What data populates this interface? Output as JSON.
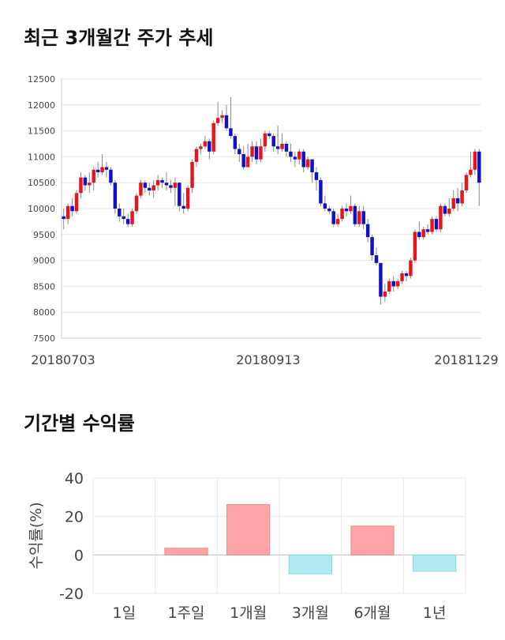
{
  "sections": {
    "price_title": "최근 3개월간 주가 추세",
    "returns_title": "기간별 수익률"
  },
  "chart_data": [
    {
      "type": "candlestick",
      "ylim": [
        7500,
        12500
      ],
      "y_ticks": [
        7500,
        8000,
        8500,
        9000,
        9500,
        10000,
        10500,
        11000,
        11500,
        12000,
        12500
      ],
      "x_labels": [
        "20180703",
        "20180913",
        "20181129"
      ],
      "grid": true,
      "colors": {
        "up": "#e8141c",
        "down": "#1010c8",
        "wick": "#888888"
      },
      "candles": [
        [
          9850,
          9800,
          10000,
          9600
        ],
        [
          9800,
          10050,
          10100,
          9700
        ],
        [
          10050,
          9950,
          10200,
          9850
        ],
        [
          9950,
          10300,
          10350,
          9900
        ],
        [
          10300,
          10600,
          10700,
          10200
        ],
        [
          10600,
          10450,
          10650,
          10350
        ],
        [
          10450,
          10500,
          10700,
          10300
        ],
        [
          10500,
          10750,
          10800,
          10350
        ],
        [
          10750,
          10700,
          10900,
          10600
        ],
        [
          10700,
          10800,
          11050,
          10650
        ],
        [
          10800,
          10750,
          10900,
          10600
        ],
        [
          10750,
          10500,
          10800,
          10450
        ],
        [
          10500,
          10000,
          10550,
          9900
        ],
        [
          10000,
          9850,
          10100,
          9750
        ],
        [
          9850,
          9800,
          10000,
          9700
        ],
        [
          9800,
          9700,
          9900,
          9650
        ],
        [
          9700,
          9950,
          10000,
          9650
        ],
        [
          9950,
          10250,
          10300,
          9900
        ],
        [
          10250,
          10500,
          10550,
          10200
        ],
        [
          10500,
          10400,
          10550,
          10300
        ],
        [
          10400,
          10350,
          10500,
          10250
        ],
        [
          10350,
          10450,
          10550,
          10200
        ],
        [
          10450,
          10550,
          10650,
          10350
        ],
        [
          10550,
          10500,
          10600,
          10400
        ],
        [
          10500,
          10450,
          10700,
          10350
        ],
        [
          10450,
          10400,
          10550,
          10300
        ],
        [
          10400,
          10500,
          10600,
          10050
        ],
        [
          10500,
          10050,
          10500,
          9950
        ],
        [
          10050,
          10000,
          10300,
          9900
        ],
        [
          10000,
          10400,
          10450,
          9950
        ],
        [
          10400,
          10900,
          10950,
          10300
        ],
        [
          10900,
          11150,
          11200,
          10800
        ],
        [
          11150,
          11200,
          11250,
          11050
        ],
        [
          11200,
          11300,
          11400,
          11150
        ],
        [
          11300,
          11100,
          11350,
          10950
        ],
        [
          11100,
          11650,
          11700,
          11050
        ],
        [
          11650,
          11750,
          12050,
          11600
        ],
        [
          11750,
          11800,
          11900,
          11650
        ],
        [
          11800,
          11550,
          12000,
          11500
        ],
        [
          11550,
          11400,
          12150,
          11350
        ],
        [
          11400,
          11150,
          11450,
          11050
        ],
        [
          11150,
          11050,
          11250,
          10900
        ],
        [
          11050,
          10800,
          11200,
          10750
        ],
        [
          10800,
          11000,
          11250,
          10800
        ],
        [
          11000,
          11200,
          11300,
          10900
        ],
        [
          11200,
          10950,
          11300,
          10850
        ],
        [
          10950,
          11200,
          11350,
          10900
        ],
        [
          11200,
          11450,
          11500,
          11100
        ],
        [
          11450,
          11400,
          11500,
          11350
        ],
        [
          11400,
          11200,
          11450,
          11100
        ],
        [
          11200,
          11150,
          11600,
          11050
        ],
        [
          11150,
          11250,
          11450,
          11100
        ],
        [
          11250,
          11100,
          11300,
          11000
        ],
        [
          11100,
          11000,
          11250,
          10900
        ],
        [
          11000,
          10950,
          11100,
          10800
        ],
        [
          10950,
          11100,
          11150,
          10850
        ],
        [
          11100,
          10800,
          11150,
          10700
        ],
        [
          10800,
          10950,
          11000,
          10750
        ],
        [
          10950,
          10700,
          10950,
          10500
        ],
        [
          10700,
          10550,
          10800,
          10350
        ],
        [
          10550,
          10100,
          10600,
          10050
        ],
        [
          10100,
          10000,
          10250,
          9950
        ],
        [
          10000,
          9950,
          10050,
          9900
        ],
        [
          9950,
          9700,
          10000,
          9650
        ],
        [
          9700,
          9800,
          9900,
          9650
        ],
        [
          9800,
          10000,
          10050,
          9750
        ],
        [
          10000,
          9950,
          10100,
          9850
        ],
        [
          9950,
          10050,
          10250,
          9900
        ],
        [
          10050,
          9700,
          10100,
          9650
        ],
        [
          9700,
          9950,
          10050,
          9650
        ],
        [
          9950,
          9700,
          10050,
          9600
        ],
        [
          9700,
          9450,
          9800,
          9350
        ],
        [
          9450,
          9100,
          9500,
          9000
        ],
        [
          9100,
          8950,
          9250,
          8900
        ],
        [
          8950,
          8300,
          8950,
          8150
        ],
        [
          8300,
          8400,
          8550,
          8200
        ],
        [
          8400,
          8600,
          8650,
          8350
        ],
        [
          8600,
          8500,
          8700,
          8400
        ],
        [
          8500,
          8600,
          8650,
          8450
        ],
        [
          8600,
          8750,
          8800,
          8550
        ],
        [
          8750,
          8700,
          8800,
          8600
        ],
        [
          8700,
          9000,
          9050,
          8650
        ],
        [
          9000,
          9550,
          9600,
          8950
        ],
        [
          9550,
          9450,
          9750,
          9400
        ],
        [
          9450,
          9600,
          9650,
          9400
        ],
        [
          9600,
          9550,
          9700,
          9500
        ],
        [
          9550,
          9800,
          9850,
          9500
        ],
        [
          9800,
          9600,
          9850,
          9550
        ],
        [
          9600,
          10050,
          10100,
          9550
        ],
        [
          10050,
          9900,
          10100,
          9850
        ],
        [
          9900,
          10000,
          10200,
          9850
        ],
        [
          10000,
          10200,
          10350,
          9950
        ],
        [
          10200,
          10100,
          10400,
          9950
        ],
        [
          10100,
          10350,
          10500,
          10050
        ],
        [
          10350,
          10650,
          10700,
          10300
        ],
        [
          10650,
          10750,
          11100,
          10600
        ],
        [
          10750,
          11100,
          11150,
          10650
        ],
        [
          11100,
          10500,
          11150,
          10050
        ]
      ]
    },
    {
      "type": "bar",
      "ylabel": "수익률(%)",
      "ylim": [
        -20,
        40
      ],
      "y_ticks": [
        -20,
        0,
        20,
        40
      ],
      "categories": [
        "1일",
        "1주일",
        "1개월",
        "3개월",
        "6개월",
        "1년"
      ],
      "values": [
        0,
        3.5,
        26.2,
        -9.8,
        15.0,
        -8.5
      ],
      "colors": {
        "positive": "#ffa3a6",
        "negative": "#b0eaf2"
      },
      "grid": true
    }
  ]
}
